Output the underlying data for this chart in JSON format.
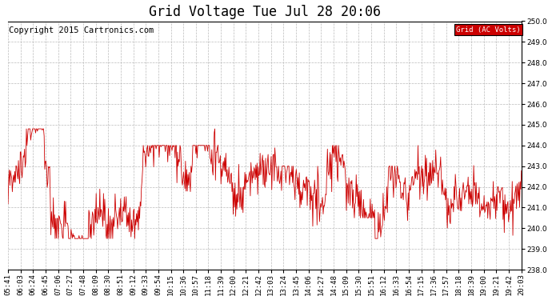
{
  "title": "Grid Voltage Tue Jul 28 20:06",
  "copyright_text": "Copyright 2015 Cartronics.com",
  "legend_label": "Grid (AC Volts)",
  "legend_bg": "#cc0000",
  "legend_text_color": "#ffffff",
  "line_color": "#cc0000",
  "ylim": [
    238.0,
    250.0
  ],
  "yticks": [
    238.0,
    239.0,
    240.0,
    241.0,
    242.0,
    243.0,
    244.0,
    245.0,
    246.0,
    247.0,
    248.0,
    249.0,
    250.0
  ],
  "xtick_labels": [
    "05:41",
    "06:03",
    "06:24",
    "06:45",
    "07:06",
    "07:27",
    "07:48",
    "08:09",
    "08:30",
    "08:51",
    "09:12",
    "09:33",
    "09:54",
    "10:15",
    "10:36",
    "10:57",
    "11:18",
    "11:39",
    "12:00",
    "12:21",
    "12:42",
    "13:03",
    "13:24",
    "13:45",
    "14:06",
    "14:27",
    "14:48",
    "15:09",
    "15:30",
    "15:51",
    "16:12",
    "16:33",
    "16:54",
    "17:15",
    "17:36",
    "17:57",
    "18:18",
    "18:39",
    "19:00",
    "19:21",
    "19:42",
    "20:03"
  ],
  "background_color": "#ffffff",
  "plot_bg_color": "#ffffff",
  "grid_color": "#bbbbbb",
  "title_fontsize": 12,
  "tick_fontsize": 6.5,
  "copyright_fontsize": 7.5
}
